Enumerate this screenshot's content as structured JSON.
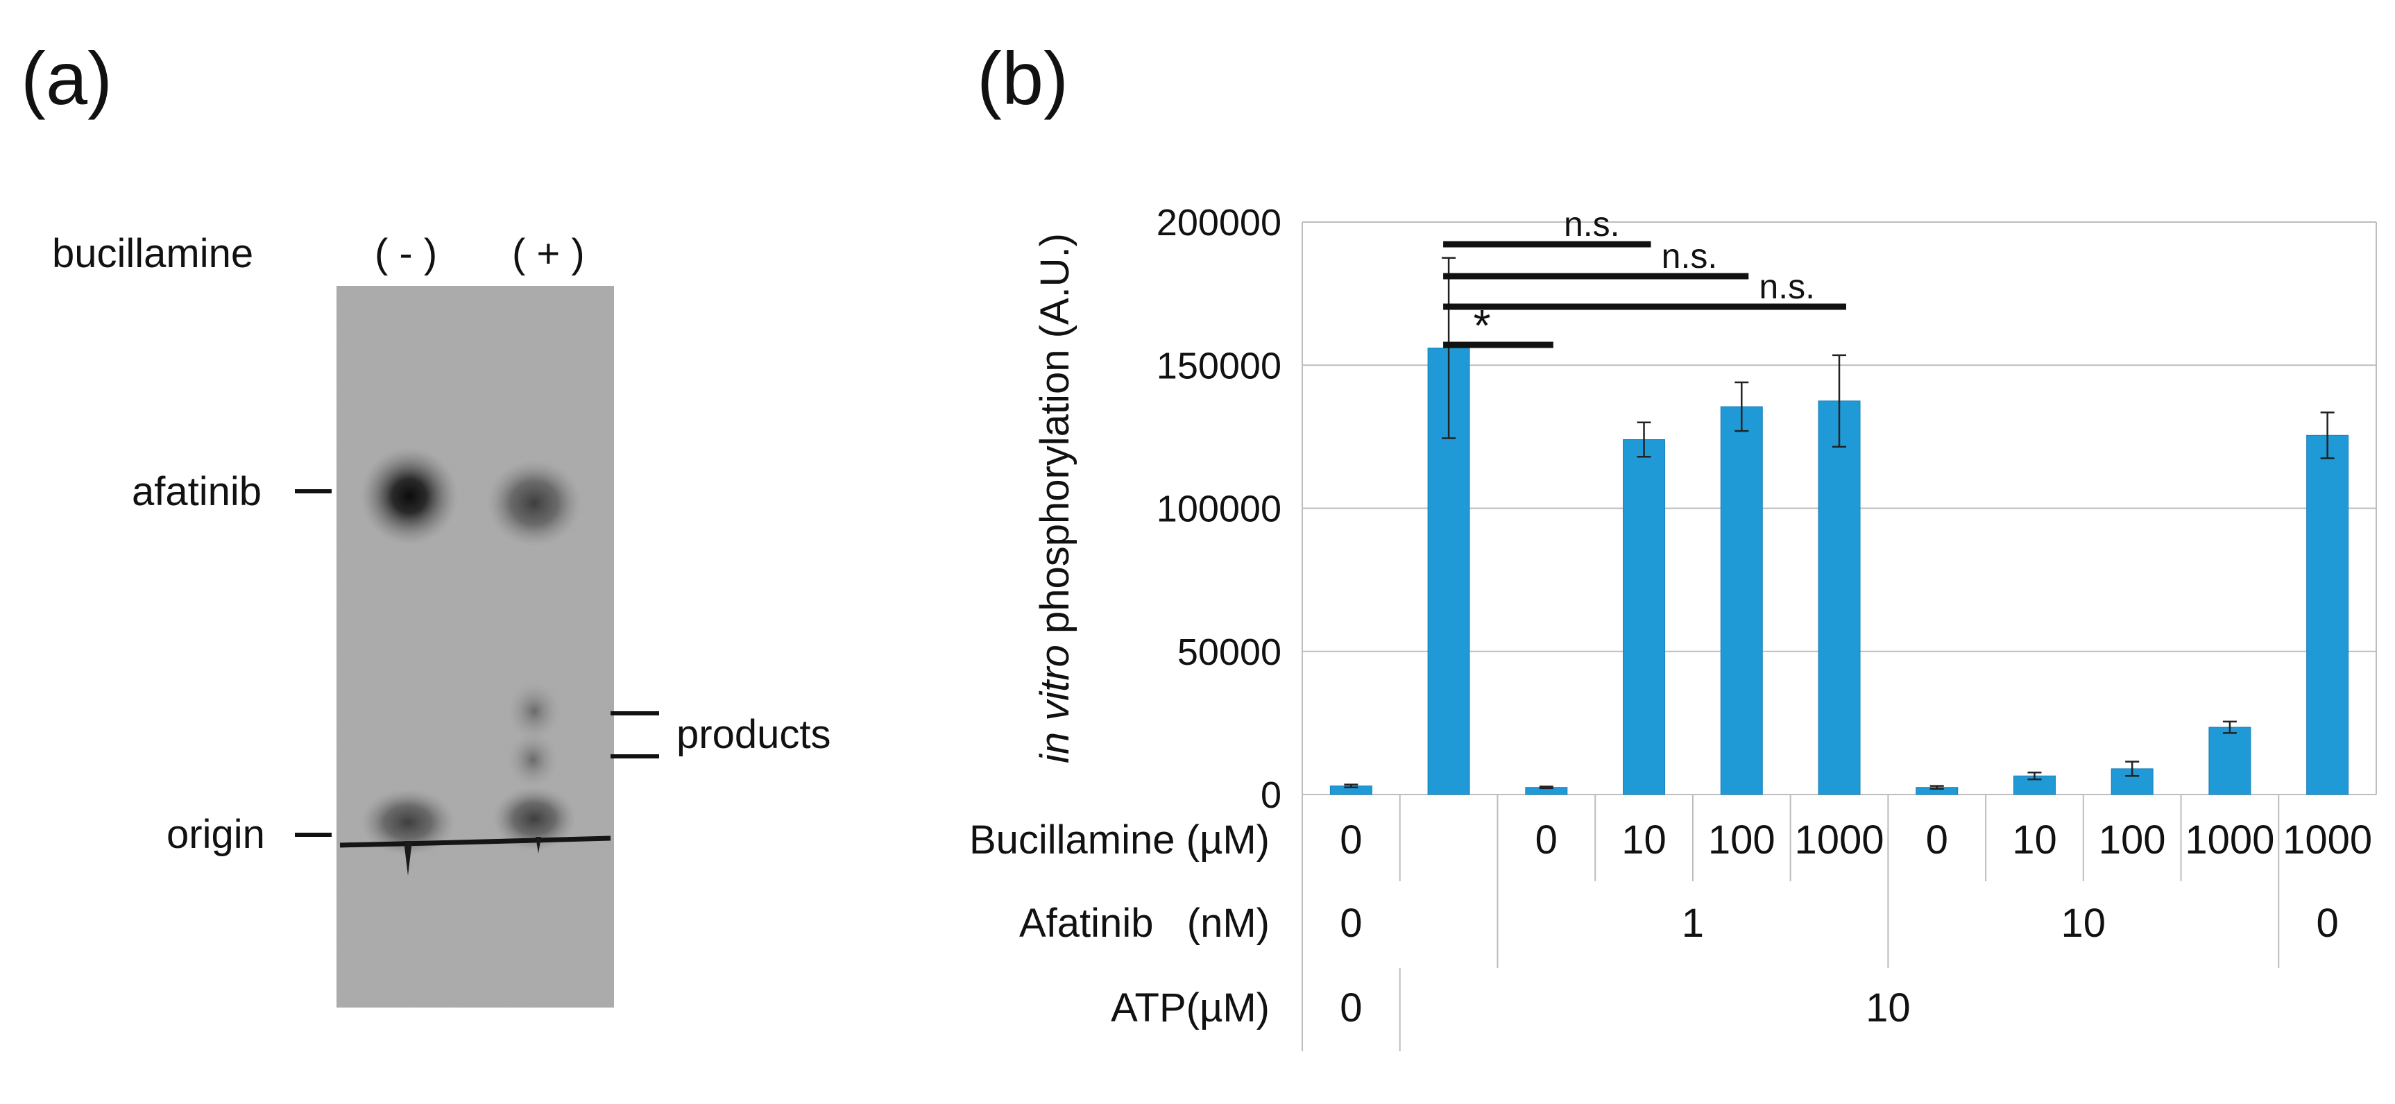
{
  "panel_a": {
    "letter": "(a)",
    "row_label": "bucillamine",
    "lane_minus": "( - )",
    "lane_plus": "( + )",
    "label_afatinib": "afatinib",
    "label_products": "products",
    "label_origin": "origin"
  },
  "panel_b": {
    "letter": "(b)"
  },
  "chart_data": {
    "type": "bar",
    "ylabel_italic": "in vitro",
    "ylabel_rest": " phosphorylation (A.U.)",
    "ylim": [
      0,
      200000
    ],
    "yticks": [
      "0",
      "50000",
      "100000",
      "150000",
      "200000"
    ],
    "ytick_values": [
      0,
      50000,
      100000,
      150000,
      200000
    ],
    "grid": true,
    "bar_color": "#1f9ad6",
    "values": [
      3000,
      156000,
      2500,
      124000,
      135500,
      137500,
      2500,
      6500,
      9000,
      23500,
      125500
    ],
    "errors": [
      500,
      31500,
      300,
      6000,
      8500,
      16000,
      500,
      1200,
      2500,
      2000,
      8000
    ],
    "table": {
      "row_labels": [
        "Bucillamine (µM)",
        "Afatinib   (nM)",
        "ATP(µM)"
      ],
      "bucillamine": [
        "0",
        "",
        "0",
        "10",
        "100",
        "1000",
        "0",
        "10",
        "100",
        "1000",
        "1000"
      ],
      "afatinib_groups": [
        {
          "label": "0",
          "from": 0,
          "to": 0
        },
        {
          "label": "1",
          "from": 2,
          "to": 5
        },
        {
          "label": "10",
          "from": 6,
          "to": 9
        },
        {
          "label": "0",
          "from": 10,
          "to": 10
        }
      ],
      "atp_groups": [
        {
          "label": "0",
          "from": 0,
          "to": 0
        },
        {
          "label": "10",
          "from": 1,
          "to": 10
        }
      ]
    },
    "significance": [
      {
        "label": "n.s.",
        "from": 1,
        "to": 3
      },
      {
        "label": "n.s.",
        "from": 1,
        "to": 4
      },
      {
        "label": "n.s.",
        "from": 1,
        "to": 5
      },
      {
        "label": "*",
        "from": 1,
        "to": 2
      }
    ]
  }
}
